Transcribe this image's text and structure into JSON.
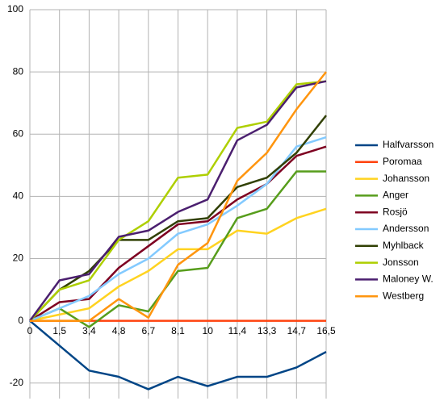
{
  "chart_data": {
    "type": "line",
    "categories": [
      "0",
      "1,5",
      "3,4",
      "4,8",
      "6,7",
      "8,1",
      "10",
      "11,4",
      "13,3",
      "14,7",
      "16,5"
    ],
    "ylim": [
      -25,
      100
    ],
    "yticks": [
      -20,
      0,
      20,
      40,
      60,
      80,
      100
    ],
    "grid": true,
    "legend": "right",
    "series": [
      {
        "name": "Halfvarsson",
        "color": "#004586",
        "values": [
          0,
          -8,
          -16,
          -18,
          -22,
          -18,
          -21,
          -18,
          -18,
          -15,
          -10
        ]
      },
      {
        "name": "Poromaa",
        "color": "#ff420e",
        "values": [
          0,
          0,
          0,
          0,
          0,
          0,
          0,
          0,
          0,
          0,
          0
        ]
      },
      {
        "name": "Johansson",
        "color": "#ffd320",
        "values": [
          0,
          2,
          4,
          11,
          16,
          23,
          23,
          29,
          28,
          33,
          36
        ]
      },
      {
        "name": "Anger",
        "color": "#579d1c",
        "values": [
          0,
          4,
          -2,
          5,
          3,
          16,
          17,
          33,
          36,
          48,
          48
        ]
      },
      {
        "name": "Rosjö",
        "color": "#7e0021",
        "values": [
          0,
          6,
          7,
          17,
          24,
          31,
          32,
          39,
          44,
          53,
          56
        ]
      },
      {
        "name": "Andersson",
        "color": "#83caff",
        "values": [
          0,
          4,
          8,
          15,
          20,
          28,
          31,
          37,
          44,
          56,
          59
        ]
      },
      {
        "name": "Myhlback",
        "color": "#314004",
        "values": [
          0,
          10,
          16,
          26,
          26,
          32,
          33,
          43,
          46,
          54,
          66
        ]
      },
      {
        "name": "Jonsson",
        "color": "#aecf00",
        "values": [
          0,
          10,
          13,
          26,
          32,
          46,
          47,
          62,
          64,
          76,
          77
        ]
      },
      {
        "name": "Maloney W.",
        "color": "#4b1f6f",
        "values": [
          0,
          13,
          15,
          27,
          29,
          35,
          39,
          58,
          63,
          75,
          77
        ]
      },
      {
        "name": "Westberg",
        "color": "#ff950e",
        "values": [
          0,
          0,
          0,
          7,
          1,
          18,
          25,
          45,
          54,
          68,
          80
        ]
      }
    ]
  }
}
